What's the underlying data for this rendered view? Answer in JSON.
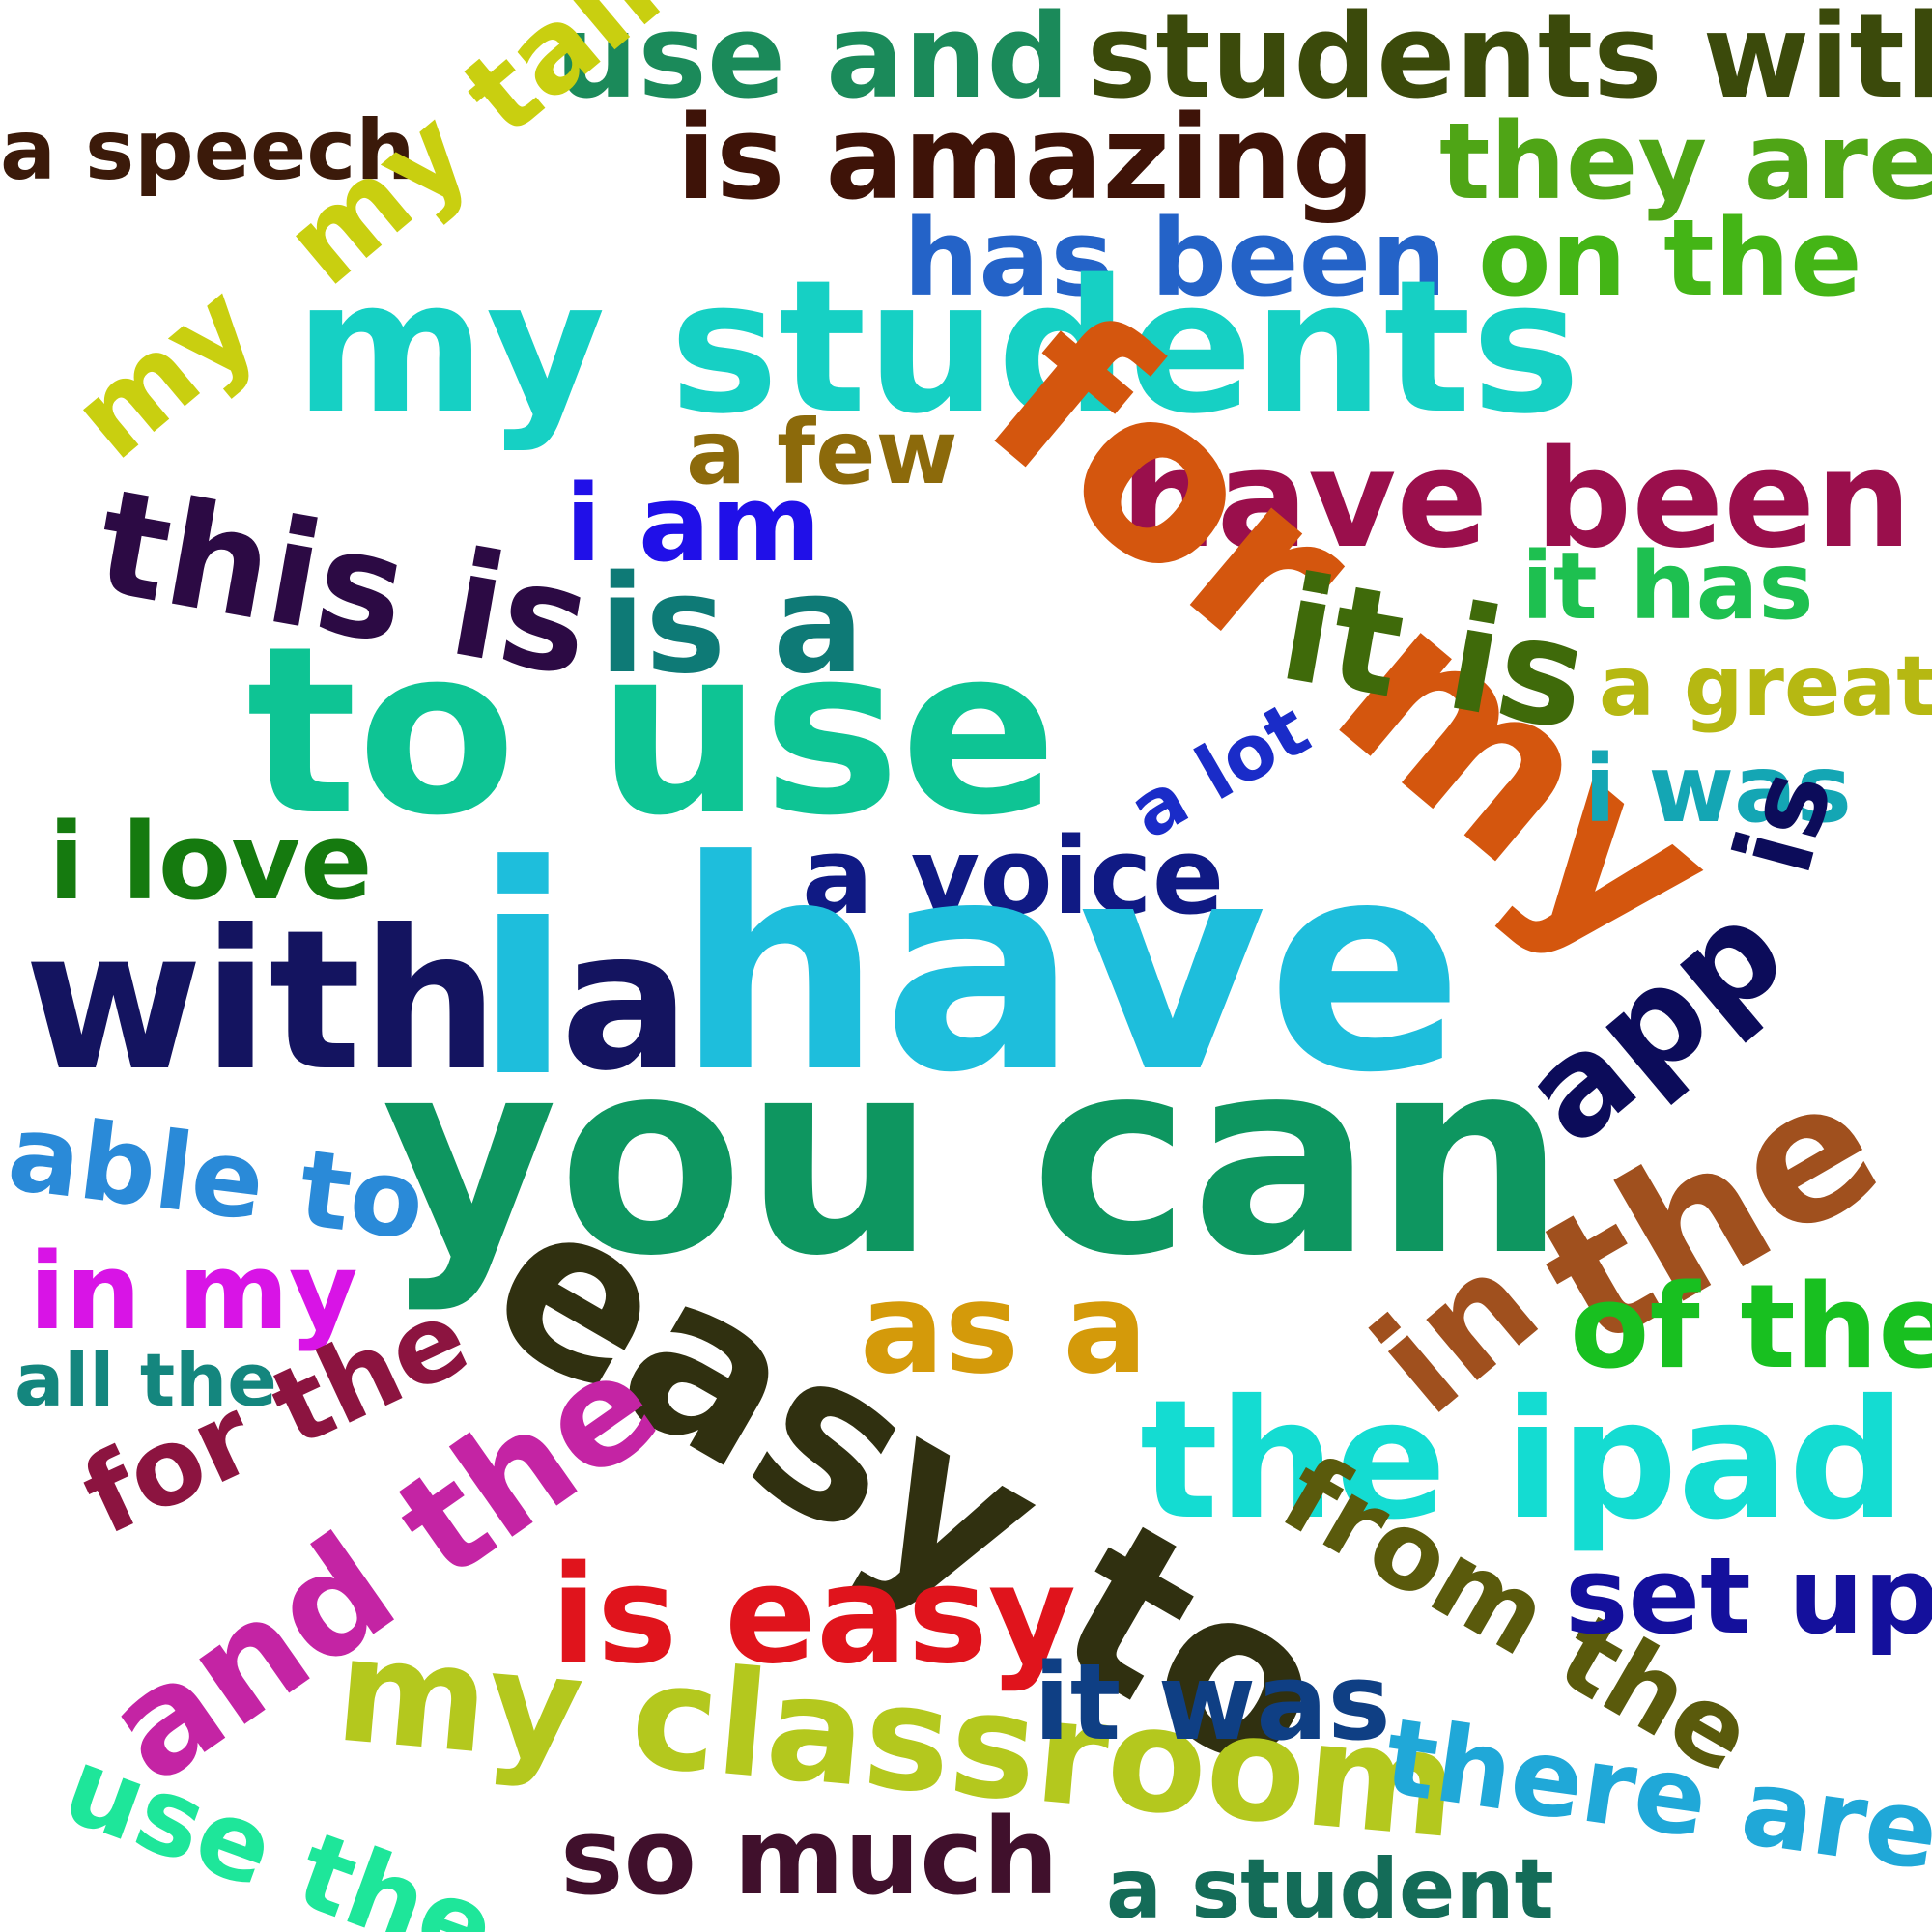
{
  "words": [
    {
      "text": "use and",
      "color": "#1b8a5a"
    },
    {
      "text": "students with",
      "color": "#3b4a0b"
    },
    {
      "text": "a speech",
      "color": "#3b1a0a"
    },
    {
      "text": "is amazing",
      "color": "#3e1308"
    },
    {
      "text": "my talk",
      "color": "#c9cf10"
    },
    {
      "text": "they are",
      "color": "#4fa516"
    },
    {
      "text": "has been",
      "color": "#2463c8"
    },
    {
      "text": "on the",
      "color": "#44b516"
    },
    {
      "text": "my students",
      "color": "#16d0c4"
    },
    {
      "text": "my",
      "color": "#c9cf10"
    },
    {
      "text": "a few",
      "color": "#8c6a0b"
    },
    {
      "text": "have been",
      "color": "#9a0f4c"
    },
    {
      "text": "this is",
      "color": "#2c0a44"
    },
    {
      "text": "i am",
      "color": "#2010e8"
    },
    {
      "text": "for my",
      "color": "#d4560e"
    },
    {
      "text": "is a",
      "color": "#0e7a76"
    },
    {
      "text": "it is",
      "color": "#3f6a0a"
    },
    {
      "text": "it has",
      "color": "#1ec050"
    },
    {
      "text": "a great",
      "color": "#b6b812"
    },
    {
      "text": "to use",
      "color": "#0ec494"
    },
    {
      "text": "a lot",
      "color": "#1a2cc8"
    },
    {
      "text": "i was",
      "color": "#14a6b4"
    },
    {
      "text": "i love",
      "color": "#157a0f"
    },
    {
      "text": "a voice",
      "color": "#101a84"
    },
    {
      "text": "is",
      "color": "#0c0c5a"
    },
    {
      "text": "with",
      "color": "#141460"
    },
    {
      "text": "i",
      "color": "#1ebedc"
    },
    {
      "text": "a",
      "color": "#141460"
    },
    {
      "text": "have",
      "color": "#1ebedc"
    },
    {
      "text": "app",
      "color": "#0c0c5a"
    },
    {
      "text": "you can",
      "color": "#0e9660"
    },
    {
      "text": "the",
      "color": "#a0501e"
    },
    {
      "text": "able to",
      "color": "#2a8ad8"
    },
    {
      "text": "in my",
      "color": "#d814e6"
    },
    {
      "text": "easy to",
      "color": "#303010"
    },
    {
      "text": "as a",
      "color": "#d49a0a"
    },
    {
      "text": "in",
      "color": "#a0501e"
    },
    {
      "text": "of the",
      "color": "#18c020"
    },
    {
      "text": "all the",
      "color": "#14867e"
    },
    {
      "text": "for the",
      "color": "#8c1440"
    },
    {
      "text": "the ipad",
      "color": "#14dcd2"
    },
    {
      "text": "and the",
      "color": "#c424a4"
    },
    {
      "text": "from the",
      "color": "#5a5a0c"
    },
    {
      "text": "set up",
      "color": "#14109c"
    },
    {
      "text": "is easy",
      "color": "#e0141c"
    },
    {
      "text": "my classroom",
      "color": "#b4c81e"
    },
    {
      "text": "it was",
      "color": "#0f3f84"
    },
    {
      "text": "there are",
      "color": "#20a8d8"
    },
    {
      "text": "use the",
      "color": "#1ee69a"
    },
    {
      "text": "so much",
      "color": "#40102c"
    },
    {
      "text": "a student",
      "color": "#146c58"
    }
  ]
}
